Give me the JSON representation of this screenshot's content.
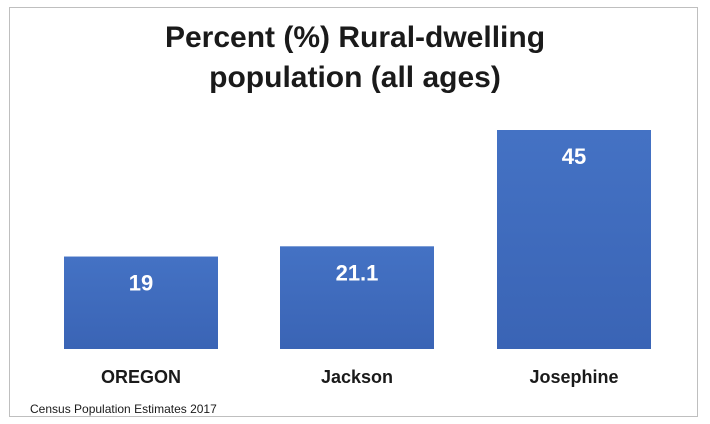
{
  "chart_data": {
    "type": "bar",
    "title_lines": [
      "Percent (%) Rural-dwelling",
      "population (all ages)"
    ],
    "categories": [
      "OREGON",
      "Jackson",
      "Josephine"
    ],
    "values": [
      19,
      21.1,
      45
    ],
    "value_labels": [
      "19",
      "21.1",
      "45"
    ],
    "bar_color": "#4472c4",
    "bar_color_dark": "#3a64b5",
    "label_color": "#ffffff",
    "ylim": [
      0,
      50
    ],
    "grid": false,
    "legend": "none",
    "source": "Census Population Estimates 2017"
  }
}
